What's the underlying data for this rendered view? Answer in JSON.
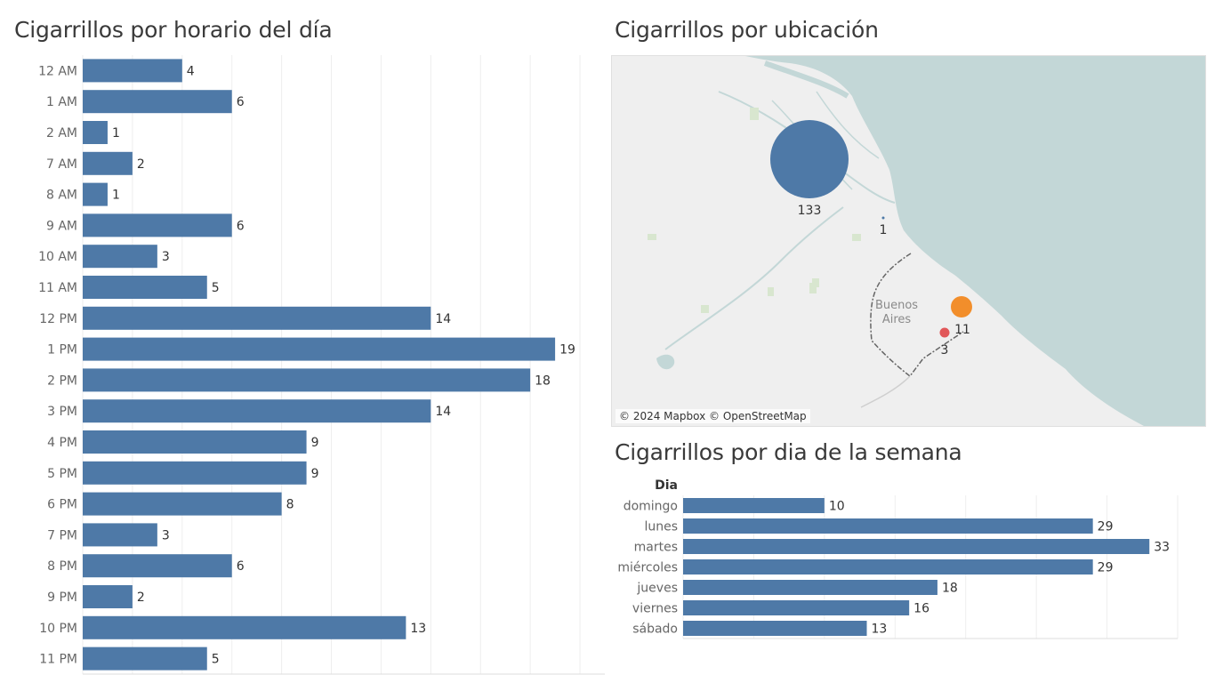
{
  "titles": {
    "hour": "Cigarrillos por horario del día",
    "location": "Cigarrillos por ubicación",
    "weekday": "Cigarrillos por dia de la semana"
  },
  "colors": {
    "bar": "#4e79a7",
    "water": "#c3d7d7",
    "land": "#efefef",
    "marker_large": "#4e79a7",
    "marker_orange": "#f28e2b",
    "marker_red": "#e15759"
  },
  "chart_data": [
    {
      "type": "bar",
      "orientation": "horizontal",
      "title": "Cigarrillos por horario del día",
      "categories": [
        "12 AM",
        "1 AM",
        "2 AM",
        "7 AM",
        "8 AM",
        "9 AM",
        "10 AM",
        "11 AM",
        "12 PM",
        "1 PM",
        "2 PM",
        "3 PM",
        "4 PM",
        "5 PM",
        "6 PM",
        "7 PM",
        "8 PM",
        "9 PM",
        "10 PM",
        "11 PM"
      ],
      "values": [
        4,
        6,
        1,
        2,
        1,
        6,
        3,
        5,
        14,
        19,
        18,
        14,
        9,
        9,
        8,
        3,
        6,
        2,
        13,
        5
      ],
      "xlim": [
        0,
        21
      ],
      "grid": true
    },
    {
      "type": "bar",
      "orientation": "horizontal",
      "title": "Cigarrillos por dia de la semana",
      "header": "Dia",
      "categories": [
        "domingo",
        "lunes",
        "martes",
        "miércoles",
        "jueves",
        "viernes",
        "sábado"
      ],
      "values": [
        10,
        29,
        33,
        29,
        18,
        16,
        13
      ],
      "xlim": [
        0,
        35
      ],
      "grid": true
    }
  ],
  "map": {
    "city_label_line1": "Buenos",
    "city_label_line2": "Aires",
    "attribution": "© 2024 Mapbox © OpenStreetMap",
    "markers": [
      {
        "value": "133",
        "kind": "large"
      },
      {
        "value": "1",
        "kind": "tiny"
      },
      {
        "value": "11",
        "kind": "orange"
      },
      {
        "value": "3",
        "kind": "red"
      }
    ]
  }
}
